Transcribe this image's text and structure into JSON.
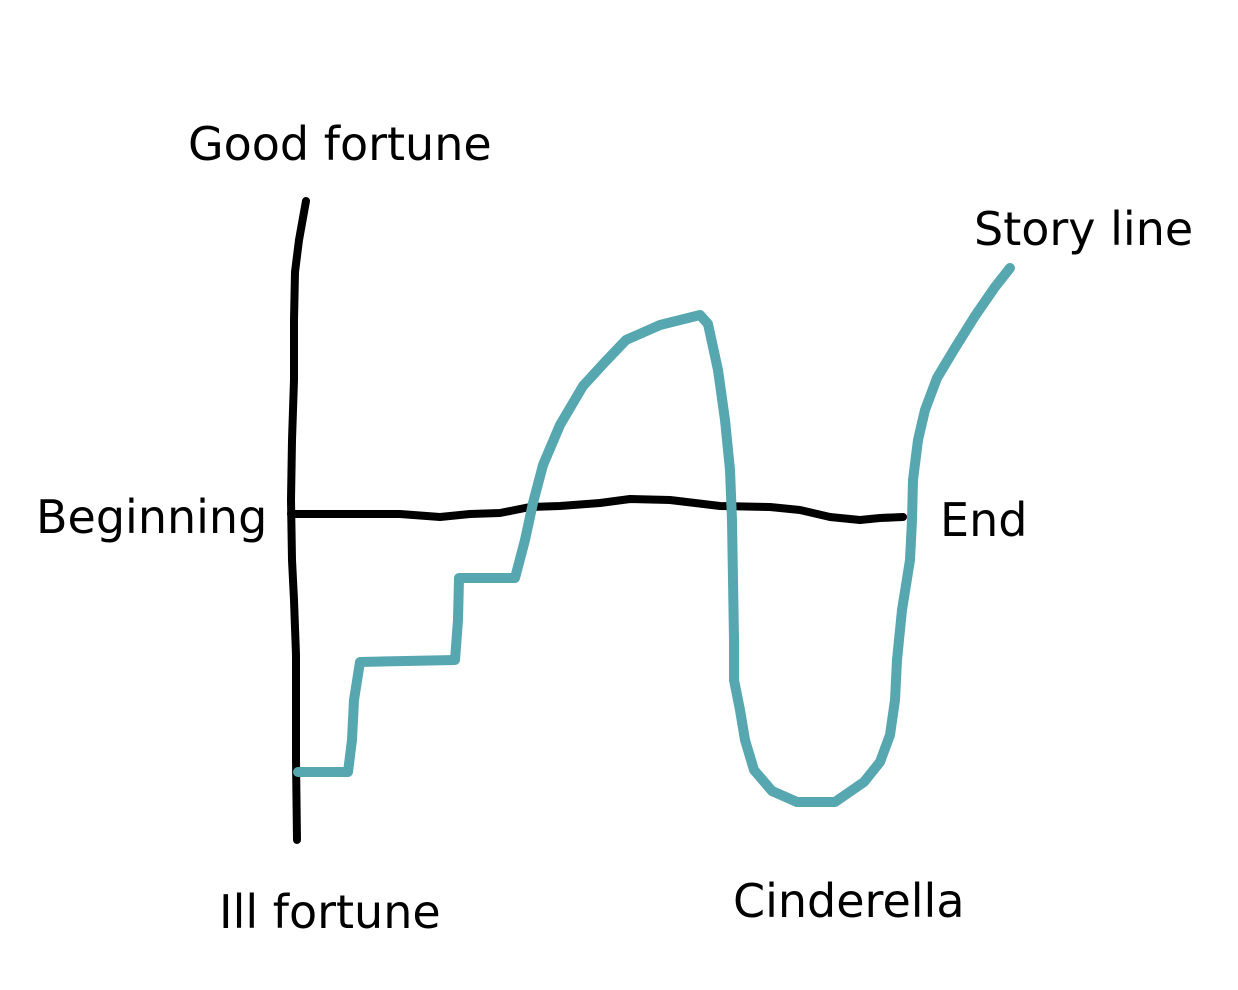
{
  "labels": {
    "good_fortune": "Good fortune",
    "ill_fortune": "Ill fortune",
    "beginning": "Beginning",
    "end": "End",
    "story_line": "Story line",
    "title": "Cinderella"
  },
  "colors": {
    "axis": "#000000",
    "story_line": "#56a7b0",
    "background": "#ffffff"
  }
}
